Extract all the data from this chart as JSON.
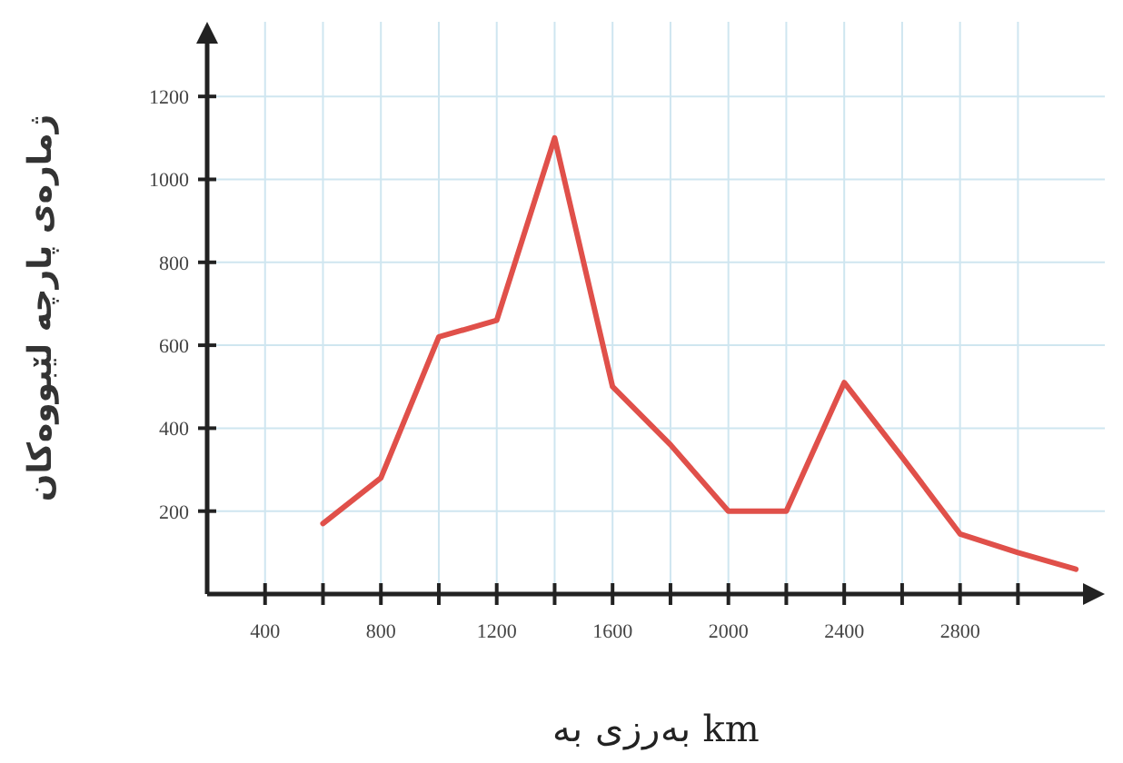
{
  "chart_data": {
    "type": "line",
    "xlabel": "بەرزی بە km",
    "ylabel": "ژمارەی پارچە لێبووەکان",
    "x": [
      600,
      800,
      1000,
      1200,
      1400,
      1600,
      1800,
      2000,
      2200,
      2400,
      2600,
      2800,
      3000,
      3200
    ],
    "series": [
      {
        "color": "#e0504a",
        "values": [
          170,
          280,
          620,
          660,
          1100,
          500,
          360,
          200,
          200,
          510,
          330,
          145,
          100,
          60
        ]
      }
    ],
    "xlim": [
      200,
      3300
    ],
    "xticks": [
      400,
      {
        "value": 600,
        "label": null
      },
      800,
      {
        "value": 1000,
        "label": null
      },
      1200,
      {
        "value": 1400,
        "label": null
      },
      1600,
      {
        "value": 1800,
        "label": null
      },
      2000,
      {
        "value": 2200,
        "label": null
      },
      2400,
      {
        "value": 2600,
        "label": null
      },
      2800,
      {
        "value": 3000,
        "label": null
      }
    ],
    "ylim": [
      0,
      1380
    ],
    "yticks": [
      200,
      400,
      600,
      800,
      1000,
      1200
    ],
    "grid": true,
    "marker": "none",
    "line_style": "solid"
  }
}
